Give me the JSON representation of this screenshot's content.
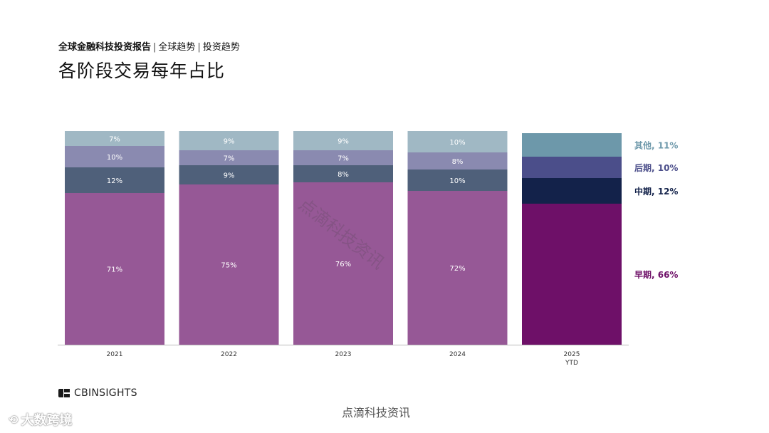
{
  "header": {
    "report": "全球金融科技投资报告",
    "crumb1": "全球趋势",
    "crumb2": "投资趋势",
    "separator": "|",
    "title": "各阶段交易每年占比"
  },
  "chart_data": {
    "type": "bar",
    "stacked": true,
    "orientation": "vertical",
    "categories": [
      "2021",
      "2022",
      "2023",
      "2024",
      "2025\nYTD"
    ],
    "series": [
      {
        "name": "早期",
        "values": [
          71,
          75,
          76,
          72,
          66
        ],
        "labels": [
          "71%",
          "75%",
          "76%",
          "72%",
          ""
        ],
        "color": "#965896",
        "highlight_color": "#6e1068"
      },
      {
        "name": "中期",
        "values": [
          12,
          9,
          8,
          10,
          12
        ],
        "labels": [
          "12%",
          "9%",
          "8%",
          "10%",
          ""
        ],
        "color": "#4f607a",
        "highlight_color": "#13224a"
      },
      {
        "name": "后期",
        "values": [
          10,
          7,
          7,
          8,
          10
        ],
        "labels": [
          "10%",
          "7%",
          "7%",
          "8%",
          ""
        ],
        "color": "#8a8ab0",
        "highlight_color": "#4b4e8a"
      },
      {
        "name": "其他",
        "values": [
          7,
          9,
          9,
          10,
          11
        ],
        "labels": [
          "7%",
          "9%",
          "9%",
          "10%",
          ""
        ],
        "color": "#a0b8c4",
        "highlight_color": "#6d98aa"
      }
    ],
    "legend": [
      {
        "text": "其他, 11%",
        "color": "#6d98aa"
      },
      {
        "text": "后期, 10%",
        "color": "#4b4e8a"
      },
      {
        "text": "中期, 12%",
        "color": "#13224a"
      },
      {
        "text": "早期, 66%",
        "color": "#6e1068"
      }
    ],
    "legend_position": "right",
    "ylim": [
      0,
      100
    ],
    "grid": false
  },
  "footer": {
    "brand": "CBINSIGHTS",
    "source": "点滴科技资讯",
    "watermark_left": "大数跨境",
    "watermark_center": "点滴科技资讯"
  }
}
